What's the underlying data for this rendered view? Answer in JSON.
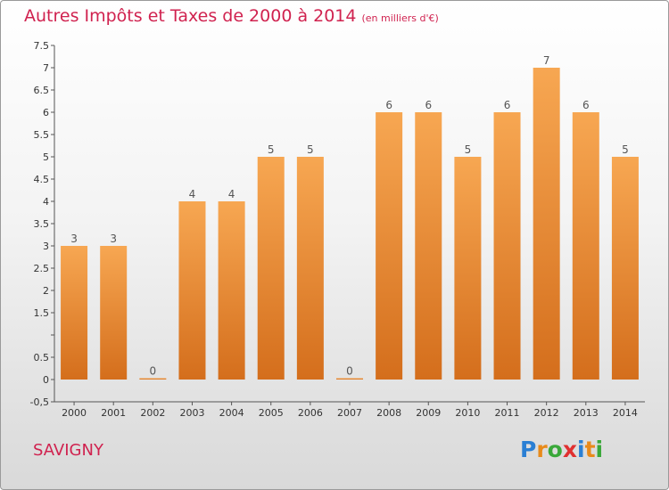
{
  "header": {
    "title": "Autres Impôts et Taxes de 2000 à 2014",
    "unit_note": "(en milliers d'€)"
  },
  "footer": {
    "commune": "SAVIGNY",
    "brand": [
      "P",
      "r",
      "o",
      "x",
      "i",
      "t",
      "i"
    ],
    "brand_colors": [
      "#2a7fd4",
      "#e88a1a",
      "#3aa83a",
      "#e03030",
      "#2a7fd4",
      "#e88a1a",
      "#3aa83a"
    ]
  },
  "colors": {
    "bar_top": "#f7a752",
    "bar_bottom": "#d46e1c",
    "accent": "#d0224f"
  },
  "chart_data": {
    "type": "bar",
    "title": "Autres Impôts et Taxes de 2000 à 2014",
    "subtitle": "(en milliers d'€)",
    "categories": [
      "2000",
      "2001",
      "2002",
      "2003",
      "2004",
      "2005",
      "2006",
      "2007",
      "2008",
      "2009",
      "2010",
      "2011",
      "2012",
      "2013",
      "2014"
    ],
    "values": [
      3,
      3,
      0,
      4,
      4,
      5,
      5,
      0,
      6,
      6,
      5,
      6,
      7,
      6,
      5
    ],
    "data_labels": [
      "3",
      "3",
      "0",
      "4",
      "4",
      "5",
      "5",
      "0",
      "6",
      "6",
      "5",
      "6",
      "7",
      "6",
      "5"
    ],
    "ylim": [
      -0.5,
      7.5
    ],
    "yticks": [
      -0.5,
      0,
      0.5,
      1,
      1.5,
      2,
      2.5,
      3,
      3.5,
      4,
      4.5,
      5,
      5.5,
      6,
      6.5,
      7,
      7.5
    ],
    "ytick_labels": [
      "-0,5",
      "0",
      "0.5",
      "",
      "1.5",
      "2",
      "2.5",
      "3",
      "3.5",
      "4",
      "4.5",
      "5",
      "5.5",
      "6",
      "6.5",
      "7",
      "7.5"
    ],
    "xlabel": "",
    "ylabel": "",
    "grid": false,
    "legend": false
  }
}
